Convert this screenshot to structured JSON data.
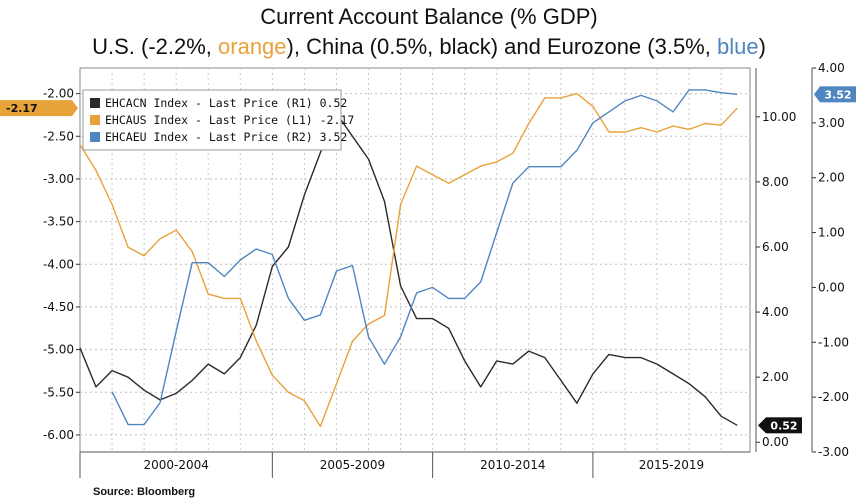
{
  "title": {
    "line1": "Current Account Balance (% GDP)",
    "line2_parts": [
      {
        "text": "U.S. (-2.2%, ",
        "color": "#111111"
      },
      {
        "text": "orange",
        "color": "#e8a23a"
      },
      {
        "text": "), China (0.5%, black) and Eurozone (3.5%, ",
        "color": "#111111"
      },
      {
        "text": "blue",
        "color": "#4f86c0"
      },
      {
        "text": ")",
        "color": "#111111"
      }
    ]
  },
  "source": "Source: Bloomberg",
  "chart_data": {
    "type": "line",
    "x_categories": [
      "2000-2004",
      "2005-2009",
      "2010-2014",
      "2015-2019"
    ],
    "x_range": [
      1999.0,
      2019.9
    ],
    "grid": true,
    "legend_position": "top-left",
    "axes": {
      "left": {
        "ticks": [
          "-2.00",
          "-2.50",
          "-3.00",
          "-3.50",
          "-4.00",
          "-4.50",
          "-5.00",
          "-5.50",
          "-6.00"
        ],
        "range": [
          -6.2,
          -1.7
        ]
      },
      "right1": {
        "ticks": [
          "0.00",
          "2.00",
          "4.00",
          "6.00",
          "8.00",
          "10.00"
        ],
        "range": [
          -0.3,
          11.5
        ]
      },
      "right2": {
        "ticks": [
          "-3.00",
          "-2.00",
          "-1.00",
          "0.00",
          "1.00",
          "2.00",
          "3.00",
          "4.00"
        ],
        "range": [
          -3.0,
          4.0
        ]
      }
    },
    "series": [
      {
        "name": "EHCACN Index - Last Price (R1) 0.52",
        "axis": "right1",
        "color": "#2a2a2a",
        "last_label": "0.52",
        "x": [
          1999.0,
          1999.5,
          2000.0,
          2000.5,
          2001.0,
          2001.5,
          2002.0,
          2002.5,
          2003.0,
          2003.5,
          2004.0,
          2004.5,
          2005.0,
          2005.5,
          2006.0,
          2006.5,
          2007.0,
          2007.5,
          2008.0,
          2008.5,
          2009.0,
          2009.5,
          2010.0,
          2010.5,
          2011.0,
          2011.5,
          2012.0,
          2012.5,
          2013.0,
          2013.5,
          2014.0,
          2014.5,
          2015.0,
          2015.5,
          2016.0,
          2016.5,
          2017.0,
          2017.5,
          2018.0,
          2018.5,
          2019.0,
          2019.5
        ],
        "values": [
          2.9,
          1.7,
          2.2,
          2.0,
          1.6,
          1.3,
          1.5,
          1.9,
          2.4,
          2.1,
          2.6,
          3.6,
          5.4,
          6.0,
          7.6,
          8.9,
          10.1,
          9.4,
          8.7,
          7.4,
          4.8,
          3.8,
          3.8,
          3.5,
          2.5,
          1.7,
          2.5,
          2.4,
          2.8,
          2.6,
          1.9,
          1.2,
          2.1,
          2.7,
          2.6,
          2.6,
          2.4,
          2.1,
          1.8,
          1.4,
          0.8,
          0.52
        ]
      },
      {
        "name": "EHCAUS Index - Last Price (L1) -2.17",
        "axis": "left",
        "color": "#e8a23a",
        "last_label": "-2.17",
        "x": [
          1999.0,
          1999.5,
          2000.0,
          2000.5,
          2001.0,
          2001.5,
          2002.0,
          2002.5,
          2003.0,
          2003.5,
          2004.0,
          2004.5,
          2005.0,
          2005.5,
          2006.0,
          2006.5,
          2007.0,
          2007.5,
          2008.0,
          2008.5,
          2009.0,
          2009.5,
          2010.0,
          2010.5,
          2011.0,
          2011.5,
          2012.0,
          2012.5,
          2013.0,
          2013.5,
          2014.0,
          2014.5,
          2015.0,
          2015.5,
          2016.0,
          2016.5,
          2017.0,
          2017.5,
          2018.0,
          2018.5,
          2019.0,
          2019.5
        ],
        "values": [
          -2.6,
          -2.9,
          -3.3,
          -3.8,
          -3.9,
          -3.7,
          -3.6,
          -3.85,
          -4.35,
          -4.4,
          -4.4,
          -4.9,
          -5.3,
          -5.5,
          -5.6,
          -5.9,
          -5.4,
          -4.9,
          -4.7,
          -4.6,
          -3.3,
          -2.85,
          -2.95,
          -3.05,
          -2.95,
          -2.85,
          -2.8,
          -2.7,
          -2.35,
          -2.05,
          -2.05,
          -2.0,
          -2.15,
          -2.45,
          -2.45,
          -2.4,
          -2.45,
          -2.38,
          -2.42,
          -2.35,
          -2.37,
          -2.17
        ]
      },
      {
        "name": "EHCAEU Index - Last Price (R2) 3.52",
        "axis": "right2",
        "color": "#4f86c0",
        "last_label": "3.52",
        "x": [
          2000.0,
          2000.5,
          2001.0,
          2001.5,
          2002.0,
          2002.5,
          2003.0,
          2003.5,
          2004.0,
          2004.5,
          2005.0,
          2005.5,
          2006.0,
          2006.5,
          2007.0,
          2007.5,
          2008.0,
          2008.5,
          2009.0,
          2009.5,
          2010.0,
          2010.5,
          2011.0,
          2011.5,
          2012.0,
          2012.5,
          2013.0,
          2013.5,
          2014.0,
          2014.5,
          2015.0,
          2015.5,
          2016.0,
          2016.5,
          2017.0,
          2017.5,
          2018.0,
          2018.5,
          2019.0,
          2019.5
        ],
        "values": [
          -1.9,
          -2.5,
          -2.5,
          -2.1,
          -0.8,
          0.45,
          0.45,
          0.2,
          0.5,
          0.7,
          0.6,
          -0.2,
          -0.6,
          -0.5,
          0.3,
          0.4,
          -0.9,
          -1.4,
          -0.9,
          -0.1,
          0.0,
          -0.2,
          -0.2,
          0.1,
          1.0,
          1.9,
          2.2,
          2.2,
          2.2,
          2.5,
          3.0,
          3.2,
          3.4,
          3.5,
          3.4,
          3.2,
          3.6,
          3.6,
          3.55,
          3.52
        ]
      }
    ],
    "legend": [
      {
        "label": "EHCACN Index - Last Price (R1) 0.52",
        "color": "#2a2a2a"
      },
      {
        "label": "EHCAUS Index - Last Price (L1) -2.17",
        "color": "#e8a23a"
      },
      {
        "label": "EHCAEU Index - Last Price (R2) 3.52",
        "color": "#4f86c0"
      }
    ]
  }
}
